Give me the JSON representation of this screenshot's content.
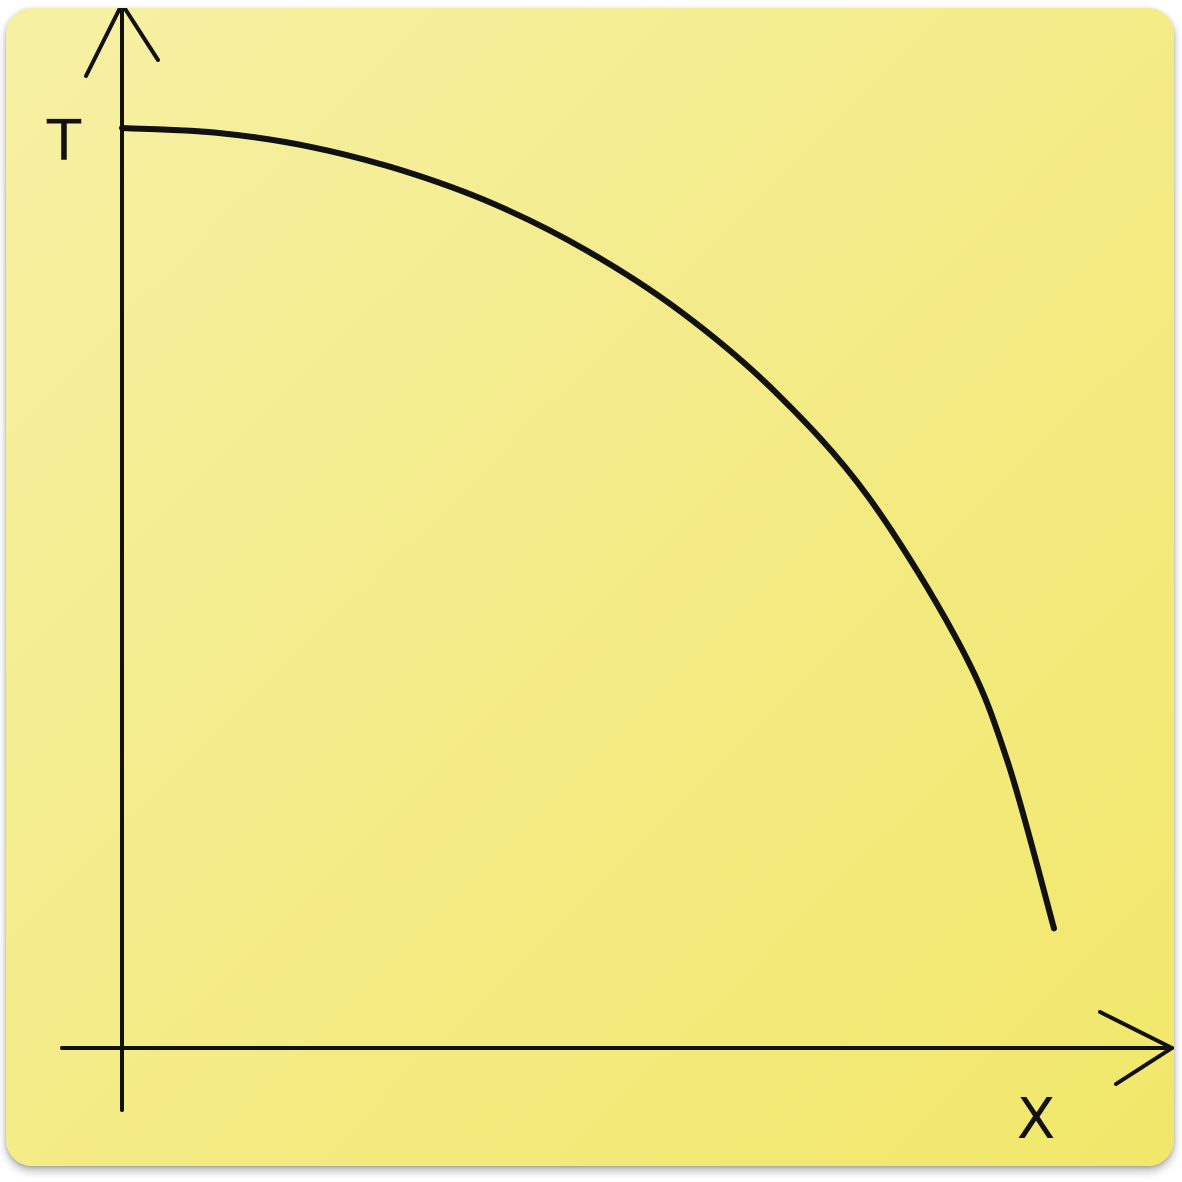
{
  "colors": {
    "paper_light": "#f6f0a4",
    "paper_dark": "#f1e76a",
    "ink": "#111111"
  },
  "chart_data": {
    "type": "line",
    "title": "",
    "xlabel": "X",
    "ylabel": "T",
    "grid": false,
    "legend": "none",
    "xlim": [
      0,
      1
    ],
    "ylim": [
      0,
      1
    ],
    "series": [
      {
        "x": [
          0.0,
          0.1,
          0.2,
          0.3,
          0.4,
          0.5,
          0.6,
          0.7,
          0.8,
          0.9,
          0.95,
          1.0
        ],
        "y": [
          1.0,
          0.995,
          0.98,
          0.954,
          0.917,
          0.866,
          0.8,
          0.714,
          0.6,
          0.436,
          0.312,
          0.13
        ]
      }
    ]
  }
}
